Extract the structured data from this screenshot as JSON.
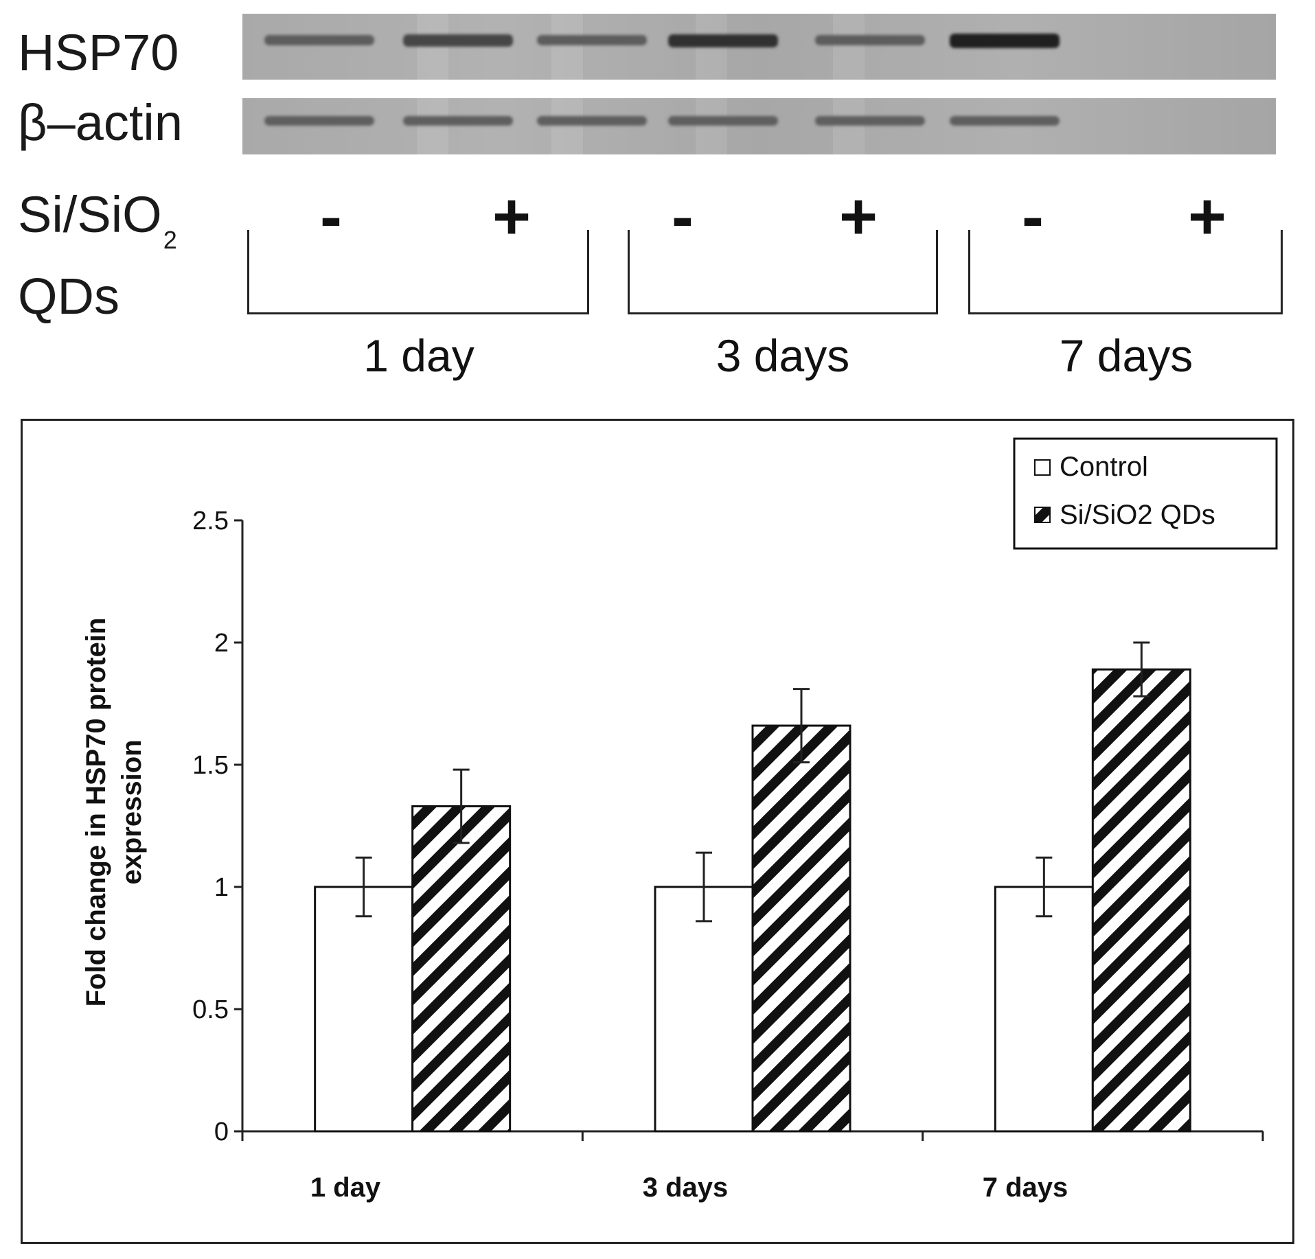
{
  "blot": {
    "rows": [
      {
        "label": "HSP70"
      },
      {
        "label": "β–actin"
      }
    ],
    "treatment_label_line1": "Si/SiO",
    "treatment_label_sub": "2",
    "treatment_label_line2": "QDs",
    "lanes": [
      "-",
      "+",
      "-",
      "+",
      "-",
      "+"
    ],
    "groups": [
      "1 day",
      "3 days",
      "7 days"
    ]
  },
  "chart_data": {
    "type": "bar",
    "categories": [
      "1 day",
      "3 days",
      "7 days"
    ],
    "series": [
      {
        "name": "Control",
        "values": [
          1.0,
          1.0,
          1.0
        ],
        "errors": [
          0.12,
          0.14,
          0.12
        ],
        "fill": "white"
      },
      {
        "name": "Si/SiO2 QDs",
        "values": [
          1.33,
          1.66,
          1.89
        ],
        "errors": [
          0.15,
          0.15,
          0.11
        ],
        "fill": "hatched"
      }
    ],
    "title": "",
    "xlabel": "",
    "ylabel_line1": "Fold change in HSP70 protein",
    "ylabel_line2": "expression",
    "ylim": [
      0,
      2.5
    ],
    "yticks": [
      "0",
      "0.5",
      "1",
      "1.5",
      "2",
      "2.5"
    ],
    "legend_position": "top-right",
    "grid": false
  }
}
